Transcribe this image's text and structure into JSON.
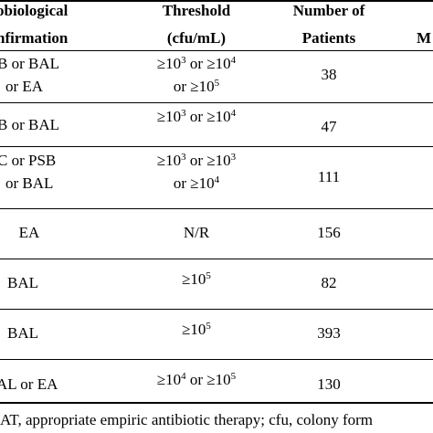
{
  "table": {
    "headers": {
      "micro_line1": "obiological",
      "micro_line2": "nfirmation",
      "threshold_line1": "Threshold",
      "threshold_line2": "(cfu/mL)",
      "patients_line1": "Number of",
      "patients_line2": "Patients",
      "last_partial": "M"
    },
    "rows": [
      {
        "micro": [
          "B or BAL",
          "or EA"
        ],
        "threshold": [
          [
            "≥10",
            "3",
            " or ≥10",
            "4"
          ],
          [
            "or ≥10",
            "5",
            "",
            ""
          ]
        ],
        "patients": "38"
      },
      {
        "micro": [
          "B or BAL"
        ],
        "threshold": [
          [
            "≥10",
            "3",
            " or ≥10",
            "4"
          ]
        ],
        "patients": "47"
      },
      {
        "micro": [
          "C or PSB",
          "or BAL"
        ],
        "threshold": [
          [
            "≥10",
            "3",
            " or ≥10",
            "3"
          ],
          [
            "or ≥10",
            "4",
            "",
            ""
          ]
        ],
        "patients": "111"
      },
      {
        "micro": [
          "EA"
        ],
        "threshold_text": "N/R",
        "patients": "156"
      },
      {
        "micro": [
          "BAL"
        ],
        "threshold": [
          [
            "≥10",
            "5",
            "",
            ""
          ]
        ],
        "patients": "82"
      },
      {
        "micro": [
          "BAL"
        ],
        "threshold": [
          [
            "≥10",
            "5",
            "",
            ""
          ]
        ],
        "patients": "393"
      },
      {
        "micro": [
          "AL or EA"
        ],
        "threshold": [
          [
            "≥10",
            "4",
            " or ≥10",
            "5"
          ]
        ],
        "patients": "130"
      }
    ]
  },
  "footnote": "AT, appropriate empiric antibiotic therapy; cfu, colony form"
}
